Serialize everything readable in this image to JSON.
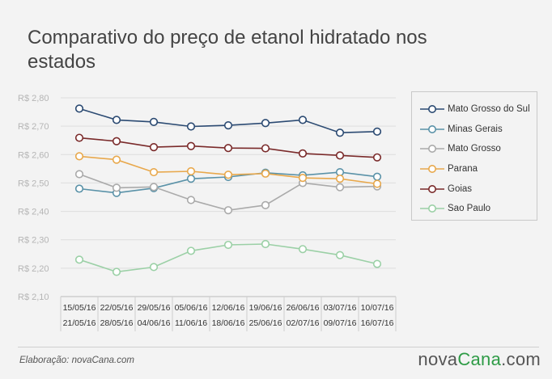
{
  "title": "Comparativo do preço de etanol hidratado nos estados",
  "footer": {
    "credit": "Elaboração: novaCana.com",
    "brand_main": "nova",
    "brand_accent": "Cana",
    "brand_tld": ".com"
  },
  "chart_data": {
    "type": "line",
    "categories": [
      [
        "15/05/16",
        "21/05/16"
      ],
      [
        "22/05/16",
        "28/05/16"
      ],
      [
        "29/05/16",
        "04/06/16"
      ],
      [
        "05/06/16",
        "11/06/16"
      ],
      [
        "12/06/16",
        "18/06/16"
      ],
      [
        "19/06/16",
        "25/06/16"
      ],
      [
        "26/06/16",
        "02/07/16"
      ],
      [
        "03/07/16",
        "09/07/16"
      ],
      [
        "10/07/16",
        "16/07/16"
      ]
    ],
    "y_ticks": [
      "R$ 2,80",
      "R$ 2,70",
      "R$ 2,60",
      "R$ 2,50",
      "R$ 2,40",
      "R$ 2,30",
      "R$ 2,20",
      "R$ 2,10"
    ],
    "ylim": [
      2.1,
      2.8
    ],
    "grid": true,
    "legend_position": "right",
    "series": [
      {
        "name": "Mato Grosso do Sul",
        "color": "#2b4a72",
        "values": [
          2.762,
          2.722,
          2.715,
          2.699,
          2.703,
          2.711,
          2.722,
          2.677,
          2.681
        ]
      },
      {
        "name": "Minas Gerais",
        "color": "#5a92a8",
        "values": [
          2.48,
          2.465,
          2.482,
          2.515,
          2.521,
          2.536,
          2.527,
          2.538,
          2.522
        ]
      },
      {
        "name": "Mato Grosso",
        "color": "#aaaaaa",
        "values": [
          2.531,
          2.483,
          2.486,
          2.44,
          2.404,
          2.422,
          2.5,
          2.485,
          2.488
        ]
      },
      {
        "name": "Parana",
        "color": "#e8a84c",
        "values": [
          2.594,
          2.582,
          2.538,
          2.541,
          2.529,
          2.533,
          2.518,
          2.515,
          2.497
        ]
      },
      {
        "name": "Goias",
        "color": "#7a2a2a",
        "values": [
          2.659,
          2.647,
          2.626,
          2.63,
          2.623,
          2.622,
          2.604,
          2.597,
          2.59
        ]
      },
      {
        "name": "Sao Paulo",
        "color": "#9bd0a6",
        "values": [
          2.23,
          2.187,
          2.204,
          2.261,
          2.282,
          2.285,
          2.267,
          2.246,
          2.215
        ]
      }
    ]
  }
}
